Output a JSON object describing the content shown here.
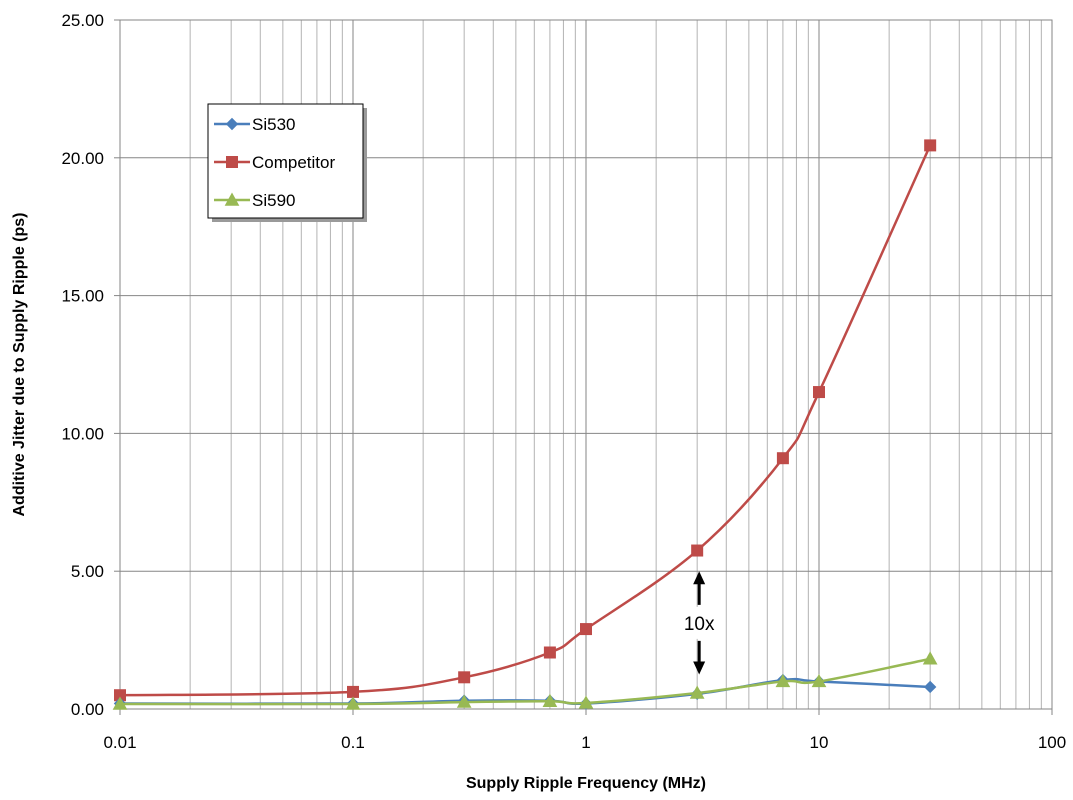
{
  "chart_data": {
    "type": "line",
    "title": "",
    "xlabel": "Supply Ripple Frequency (MHz)",
    "ylabel": "Additive Jitter due to Supply Ripple (ps)",
    "xscale": "log",
    "xlim": [
      0.01,
      100
    ],
    "ylim": [
      0,
      25
    ],
    "x_ticks": [
      "0.01",
      "0.1",
      "1",
      "10",
      "100"
    ],
    "y_ticks": [
      "0.00",
      "5.00",
      "10.00",
      "15.00",
      "20.00",
      "25.00"
    ],
    "grid": true,
    "legend_position": "top-left",
    "series": [
      {
        "name": "Si530",
        "color": "#4a7ebb",
        "marker": "diamond",
        "x": [
          0.01,
          0.1,
          0.3,
          0.7,
          1,
          3,
          7,
          10,
          30
        ],
        "y": [
          0.2,
          0.2,
          0.3,
          0.3,
          0.2,
          0.55,
          1.05,
          1.0,
          0.8
        ]
      },
      {
        "name": "Competitor",
        "color": "#be4b48",
        "marker": "square",
        "x": [
          0.01,
          0.1,
          0.3,
          0.7,
          1,
          3,
          7,
          10,
          30
        ],
        "y": [
          0.5,
          0.62,
          1.15,
          2.05,
          2.9,
          5.75,
          9.1,
          11.5,
          20.45
        ]
      },
      {
        "name": "Si590",
        "color": "#98b954",
        "marker": "triangle",
        "x": [
          0.01,
          0.1,
          0.3,
          0.7,
          1,
          3,
          7,
          10,
          30
        ],
        "y": [
          0.18,
          0.18,
          0.25,
          0.28,
          0.22,
          0.58,
          1.0,
          1.0,
          1.82
        ]
      }
    ],
    "annotation": {
      "text": "10x",
      "x": 3,
      "y_top": 5.0,
      "y_bottom": 1.25
    }
  }
}
